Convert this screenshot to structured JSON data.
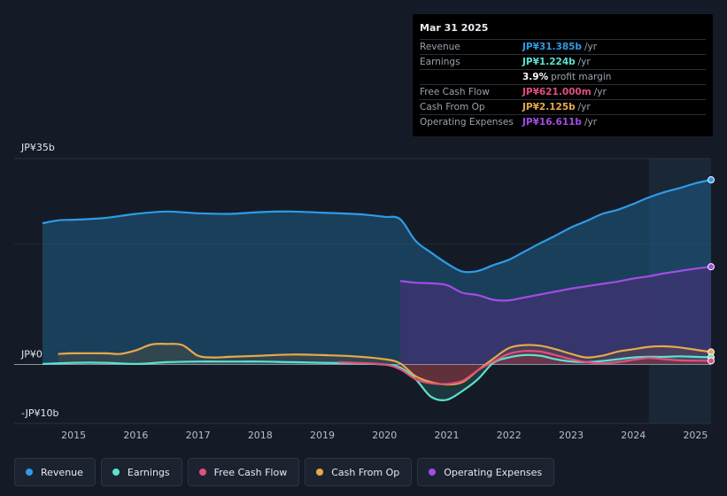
{
  "tooltip": {
    "date": "Mar 31 2025",
    "rows": [
      {
        "label": "Revenue",
        "value": "JP¥31.385b",
        "unit": "/yr",
        "color": "#2e9be6"
      },
      {
        "label": "Earnings",
        "value": "JP¥1.224b",
        "unit": "/yr",
        "color": "#5ce0d0"
      },
      {
        "label": "",
        "value": "3.9%",
        "unit": "profit margin",
        "color": "#ffffff"
      },
      {
        "label": "Free Cash Flow",
        "value": "JP¥621.000m",
        "unit": "/yr",
        "color": "#e0507c"
      },
      {
        "label": "Cash From Op",
        "value": "JP¥2.125b",
        "unit": "/yr",
        "color": "#e8a94a"
      },
      {
        "label": "Operating Expenses",
        "value": "JP¥16.611b",
        "unit": "/yr",
        "color": "#a24ce6"
      }
    ]
  },
  "legend": [
    {
      "label": "Revenue",
      "color": "#2e9be6"
    },
    {
      "label": "Earnings",
      "color": "#5ce0d0"
    },
    {
      "label": "Free Cash Flow",
      "color": "#e0507c"
    },
    {
      "label": "Cash From Op",
      "color": "#e8a94a"
    },
    {
      "label": "Operating Expenses",
      "color": "#a24ce6"
    }
  ],
  "chart_data": {
    "type": "area",
    "title": "",
    "xlabel": "",
    "ylabel": "",
    "y_tick_labels": [
      "JP¥35b",
      "JP¥0",
      "-JP¥10b"
    ],
    "ylim": [
      -10,
      35
    ],
    "xlim": [
      2014.5,
      2025.25
    ],
    "x_tick_labels": [
      "2015",
      "2016",
      "2017",
      "2018",
      "2019",
      "2020",
      "2021",
      "2022",
      "2023",
      "2024",
      "2025"
    ],
    "x_ticks": [
      2015,
      2016,
      2017,
      2018,
      2019,
      2020,
      2021,
      2022,
      2023,
      2024,
      2025
    ],
    "highlight_from": 2024.25,
    "series": [
      {
        "name": "Revenue",
        "color": "#2e9be6",
        "x": [
          2014.5,
          2014.75,
          2015.0,
          2015.5,
          2016.0,
          2016.5,
          2017.0,
          2017.5,
          2018.0,
          2018.5,
          2019.0,
          2019.5,
          2019.75,
          2020.0,
          2020.25,
          2020.5,
          2020.75,
          2021.0,
          2021.25,
          2021.5,
          2021.75,
          2022.0,
          2022.25,
          2022.5,
          2022.75,
          2023.0,
          2023.25,
          2023.5,
          2023.75,
          2024.0,
          2024.25,
          2024.5,
          2024.75,
          2025.0,
          2025.25
        ],
        "values": [
          24.0,
          24.5,
          24.6,
          24.9,
          25.6,
          26.0,
          25.7,
          25.6,
          25.9,
          26.0,
          25.8,
          25.6,
          25.4,
          25.1,
          24.7,
          21.0,
          19.0,
          17.2,
          15.8,
          15.9,
          16.9,
          17.8,
          19.2,
          20.6,
          21.9,
          23.3,
          24.4,
          25.6,
          26.3,
          27.3,
          28.4,
          29.3,
          30.0,
          30.8,
          31.385
        ]
      },
      {
        "name": "Earnings",
        "color": "#5ce0d0",
        "x": [
          2014.5,
          2015.0,
          2015.5,
          2016.0,
          2016.5,
          2017.0,
          2017.5,
          2018.0,
          2018.5,
          2019.0,
          2019.5,
          2020.0,
          2020.25,
          2020.5,
          2020.75,
          2021.0,
          2021.25,
          2021.5,
          2021.75,
          2022.0,
          2022.25,
          2022.5,
          2022.75,
          2023.0,
          2023.25,
          2023.5,
          2023.75,
          2024.0,
          2024.25,
          2024.5,
          2024.75,
          2025.0,
          2025.25
        ],
        "values": [
          0.1,
          0.3,
          0.3,
          0.1,
          0.4,
          0.5,
          0.5,
          0.5,
          0.4,
          0.3,
          0.2,
          0.0,
          -0.5,
          -2.5,
          -5.5,
          -6.0,
          -4.5,
          -2.5,
          0.3,
          1.2,
          1.6,
          1.5,
          0.9,
          0.5,
          0.4,
          0.6,
          0.9,
          1.2,
          1.3,
          1.3,
          1.4,
          1.3,
          1.224
        ]
      },
      {
        "name": "Free Cash Flow",
        "color": "#e0507c",
        "x": [
          2019.25,
          2019.5,
          2020.0,
          2020.25,
          2020.5,
          2020.75,
          2021.0,
          2021.25,
          2021.5,
          2021.75,
          2022.0,
          2022.25,
          2022.5,
          2022.75,
          2023.0,
          2023.25,
          2023.5,
          2023.75,
          2024.0,
          2024.25,
          2024.5,
          2024.75,
          2025.0,
          2025.25
        ],
        "values": [
          0.4,
          0.3,
          0.0,
          -0.8,
          -2.5,
          -3.2,
          -3.3,
          -2.8,
          -1.0,
          0.5,
          1.8,
          2.3,
          2.2,
          1.6,
          0.9,
          0.4,
          0.2,
          0.4,
          0.8,
          1.1,
          0.9,
          0.7,
          0.65,
          0.621
        ]
      },
      {
        "name": "Cash From Op",
        "color": "#e8a94a",
        "x": [
          2014.75,
          2015.0,
          2015.5,
          2015.75,
          2016.0,
          2016.25,
          2016.5,
          2016.75,
          2017.0,
          2017.25,
          2017.5,
          2018.0,
          2018.5,
          2019.0,
          2019.5,
          2020.0,
          2020.25,
          2020.5,
          2020.75,
          2021.0,
          2021.25,
          2021.5,
          2021.75,
          2022.0,
          2022.25,
          2022.5,
          2022.75,
          2023.0,
          2023.25,
          2023.5,
          2023.75,
          2024.0,
          2024.25,
          2024.5,
          2024.75,
          2025.0,
          2025.25
        ],
        "values": [
          1.8,
          1.9,
          1.9,
          1.8,
          2.4,
          3.4,
          3.5,
          3.3,
          1.5,
          1.2,
          1.3,
          1.5,
          1.7,
          1.6,
          1.4,
          0.9,
          0.2,
          -2.0,
          -3.0,
          -3.4,
          -3.0,
          -1.0,
          1.0,
          2.8,
          3.3,
          3.2,
          2.6,
          1.8,
          1.2,
          1.5,
          2.2,
          2.6,
          3.0,
          3.1,
          2.9,
          2.5,
          2.125
        ]
      },
      {
        "name": "Operating Expenses",
        "color": "#a24ce6",
        "x": [
          2020.25,
          2020.5,
          2020.75,
          2021.0,
          2021.25,
          2021.5,
          2021.75,
          2022.0,
          2022.25,
          2022.5,
          2022.75,
          2023.0,
          2023.25,
          2023.5,
          2023.75,
          2024.0,
          2024.25,
          2024.5,
          2024.75,
          2025.0,
          2025.25
        ],
        "values": [
          14.2,
          13.9,
          13.8,
          13.5,
          12.2,
          11.8,
          11.0,
          10.9,
          11.4,
          11.9,
          12.4,
          12.9,
          13.3,
          13.7,
          14.1,
          14.6,
          15.0,
          15.5,
          15.9,
          16.3,
          16.611
        ]
      }
    ]
  }
}
